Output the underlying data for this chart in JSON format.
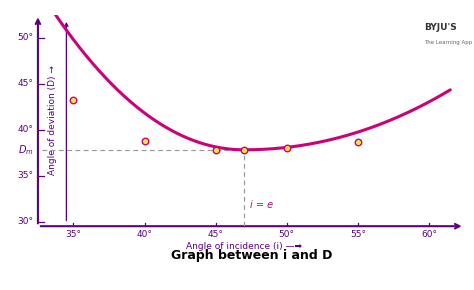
{
  "title": "Graph between i and D",
  "xlabel": "Angle of incidence (i) —➡",
  "ylabel": "Angle of deviation (D) →",
  "xlim": [
    30.5,
    62.5
  ],
  "ylim": [
    29.5,
    52.5
  ],
  "xticks": [
    35,
    40,
    45,
    50,
    55,
    60
  ],
  "yticks": [
    30,
    35,
    40,
    45,
    50
  ],
  "curve_color": "#cc0077",
  "axis_color": "#5a0080",
  "dot_color": "#f5e642",
  "dot_edge_color": "#cc0077",
  "dm_value": 37.8,
  "dm_x": 47.0,
  "dashed_color": "#999999",
  "ie_label": "i = e",
  "ie_color": "#cc0077",
  "background_color": "#ffffff",
  "data_points_x": [
    35,
    40,
    45,
    47,
    50,
    55
  ],
  "data_points_y": [
    43.2,
    38.8,
    37.8,
    37.8,
    37.95,
    38.7
  ],
  "curve_x_start": 31.5,
  "curve_x_end": 61.5,
  "i_min": 47.0,
  "D_min": 37.8,
  "title_color": "#5a0080",
  "title_fontsize": 9,
  "tick_fontsize": 6.5,
  "label_fontsize": 6.5
}
